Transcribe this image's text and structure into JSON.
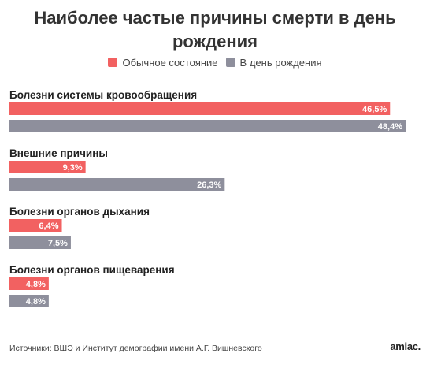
{
  "chart_data": {
    "type": "bar",
    "orientation": "horizontal",
    "title": "Наиболее частые причины смерти в день рождения",
    "categories": [
      "Болезни системы кровообращения",
      "Внешние причины",
      "Болезни органов дыхания",
      "Болезни органов пищеварения"
    ],
    "series": [
      {
        "name": "Обычное состояние",
        "color": "#f26161",
        "values": [
          46.5,
          9.3,
          6.4,
          4.8
        ],
        "labels": [
          "46,5%",
          "9,3%",
          "6,4%",
          "4,8%"
        ]
      },
      {
        "name": "В день рождения",
        "color": "#8e8f9c",
        "values": [
          48.4,
          26.3,
          7.5,
          4.8
        ],
        "labels": [
          "48,4%",
          "26,3%",
          "7,5%",
          "4,8%"
        ]
      }
    ],
    "xlim": [
      0,
      48.4
    ],
    "legend_position": "top-center",
    "grid": false
  },
  "footer": {
    "source": "Источники: ВШЭ и Институт демографии имени А.Г. Вишневского",
    "brand": "amiac."
  }
}
